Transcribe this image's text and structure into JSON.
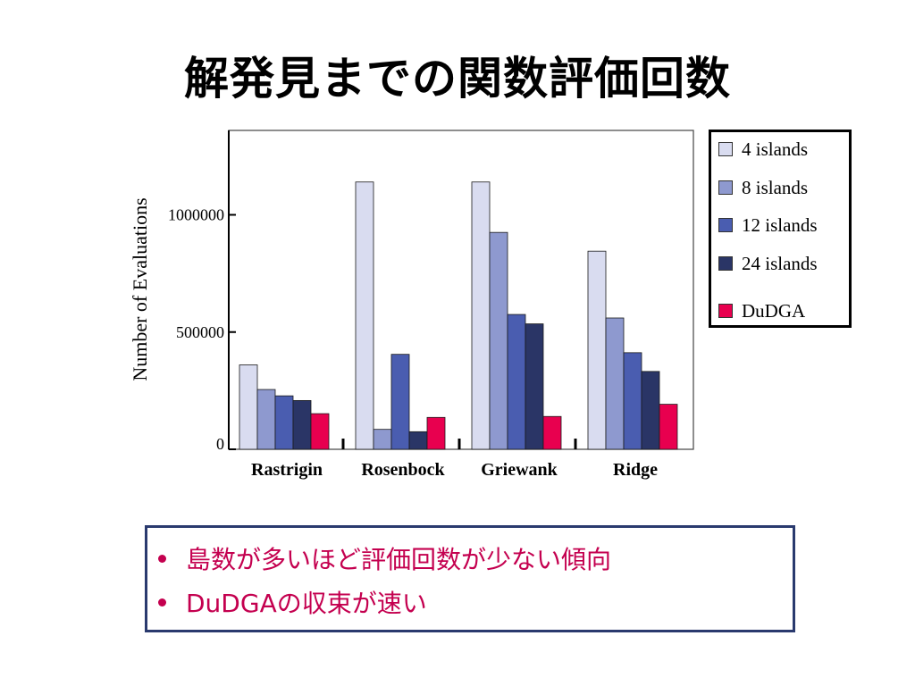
{
  "slide": {
    "title": "解発見までの関数評価回数"
  },
  "chart_data": {
    "type": "bar",
    "ylabel": "Number of Evaluations",
    "xlabel": "",
    "categories": [
      "Rastrigin",
      "Rosenbock",
      "Griewank",
      "Ridge"
    ],
    "yticks": [
      {
        "value": 0,
        "label": "0"
      },
      {
        "value": 500000,
        "label": "500000"
      },
      {
        "value": 1000000,
        "label": "1000000"
      }
    ],
    "ylim": [
      0,
      1360000
    ],
    "grid": false,
    "legend_position": "right",
    "series": [
      {
        "name": "4 islands",
        "color": "#d9dcf0",
        "values": [
          360000,
          1140000,
          1140000,
          845000
        ]
      },
      {
        "name": "8 islands",
        "color": "#8e99cf",
        "values": [
          255000,
          85000,
          925000,
          560000
        ]
      },
      {
        "name": "12 islands",
        "color": "#4a5db0",
        "values": [
          228000,
          405000,
          575000,
          412000
        ]
      },
      {
        "name": "24 islands",
        "color": "#2a3566",
        "values": [
          208000,
          75000,
          535000,
          332000
        ]
      },
      {
        "name": "DuDGA",
        "color": "#e8004f",
        "values": [
          152000,
          136000,
          140000,
          192000
        ]
      }
    ]
  },
  "bullets": [
    {
      "text": "島数が多いほど評価回数が少ない傾向"
    },
    {
      "text": "DuDGAの収束が速い"
    }
  ]
}
